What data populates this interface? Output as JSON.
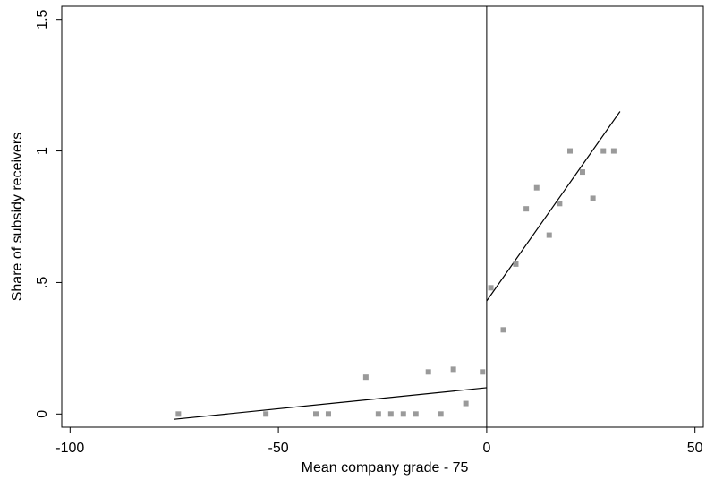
{
  "chart_data": {
    "type": "scatter",
    "title": "",
    "xlabel": "Mean company grade - 75",
    "ylabel": "Share of subsidy receivers",
    "xlim": [
      -102,
      52
    ],
    "ylim": [
      -0.05,
      1.55
    ],
    "xticks": [
      -100,
      -50,
      0,
      50
    ],
    "xtick_labels": [
      "-100",
      "-50",
      "0",
      "50"
    ],
    "yticks": [
      0,
      0.5,
      1,
      1.5
    ],
    "ytick_labels": [
      "0",
      ".5",
      "1",
      "1.5"
    ],
    "grid": false,
    "legend": "none",
    "cutoff_x": 0,
    "point_color": "#9a9a9a",
    "line_color": "#000000",
    "series": [
      {
        "values": [
          [
            -74,
            0
          ],
          [
            -53,
            0
          ],
          [
            -41,
            0
          ],
          [
            -38,
            0
          ],
          [
            -29,
            0.14
          ],
          [
            -26,
            0
          ],
          [
            -23,
            0
          ],
          [
            -20,
            0
          ],
          [
            -17,
            0
          ],
          [
            -14,
            0.16
          ],
          [
            -11,
            0
          ],
          [
            -8,
            0.17
          ],
          [
            -5,
            0.04
          ],
          [
            -1,
            0.16
          ],
          [
            1,
            0.48
          ],
          [
            4,
            0.32
          ],
          [
            7,
            0.57
          ],
          [
            9.5,
            0.78
          ],
          [
            12,
            0.86
          ],
          [
            15,
            0.68
          ],
          [
            17.5,
            0.8
          ],
          [
            20,
            1.0
          ],
          [
            23,
            0.92
          ],
          [
            25.5,
            0.82
          ],
          [
            28,
            1.0
          ],
          [
            30.5,
            1.0
          ]
        ]
      }
    ],
    "fit_lines": [
      {
        "x": [
          -75,
          0
        ],
        "y": [
          -0.02,
          0.1
        ]
      },
      {
        "x": [
          0,
          32
        ],
        "y": [
          0.43,
          1.15
        ]
      }
    ]
  }
}
